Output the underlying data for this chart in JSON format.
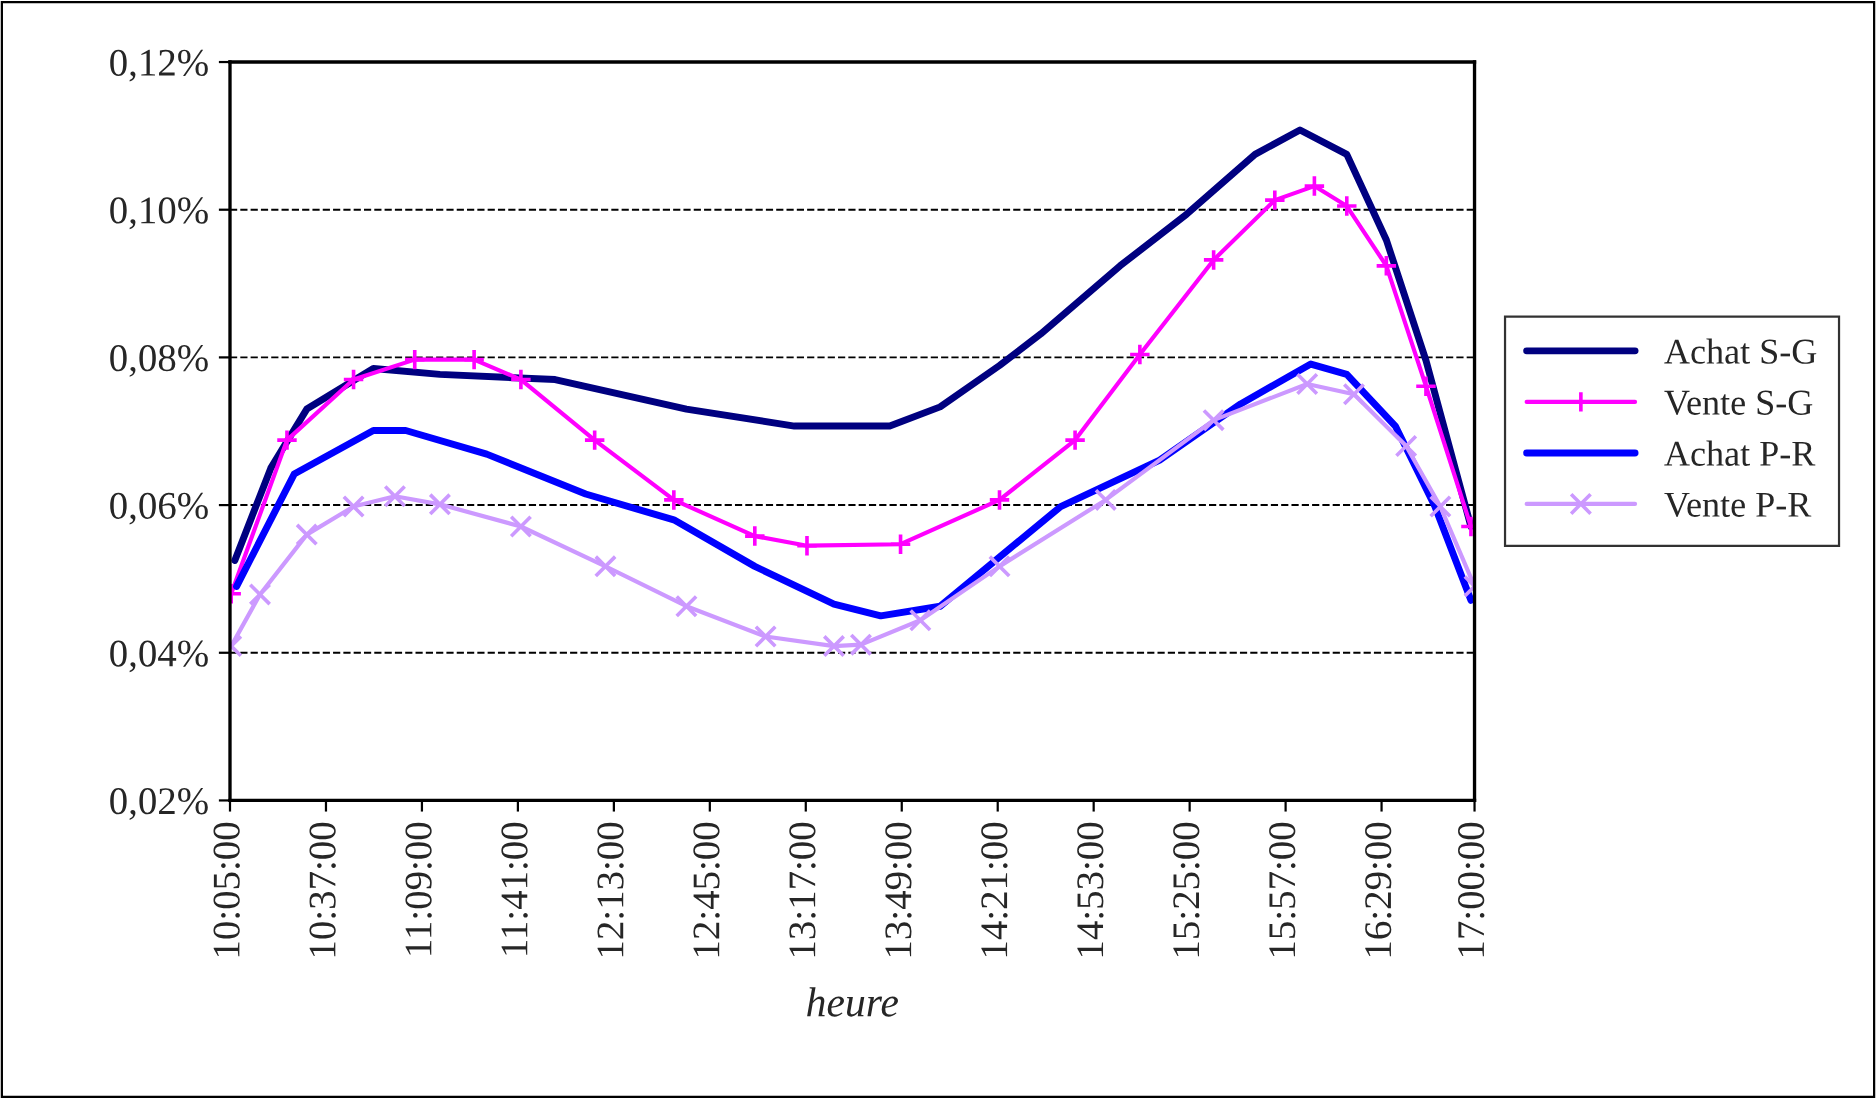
{
  "chart_data": {
    "type": "line",
    "xlabel": "heure",
    "xlim": [
      10.0833,
      17.0
    ],
    "xticks": [
      {
        "value": 10.0833,
        "label": "10:05:00"
      },
      {
        "value": 10.6167,
        "label": "10:37:00"
      },
      {
        "value": 11.15,
        "label": "11:09:00"
      },
      {
        "value": 11.6833,
        "label": "11:41:00"
      },
      {
        "value": 12.2167,
        "label": "12:13:00"
      },
      {
        "value": 12.75,
        "label": "12:45:00"
      },
      {
        "value": 13.2833,
        "label": "13:17:00"
      },
      {
        "value": 13.8167,
        "label": "13:49:00"
      },
      {
        "value": 14.35,
        "label": "14:21:00"
      },
      {
        "value": 14.8833,
        "label": "14:53:00"
      },
      {
        "value": 15.4167,
        "label": "15:25:00"
      },
      {
        "value": 15.95,
        "label": "15:57:00"
      },
      {
        "value": 16.4833,
        "label": "16:29:00"
      },
      {
        "value": 17.0,
        "label": "17:00:00"
      }
    ],
    "ylim": [
      0.02,
      0.12
    ],
    "yticks": [
      {
        "value": 0.02,
        "label": "0,02%"
      },
      {
        "value": 0.04,
        "label": "0,04%"
      },
      {
        "value": 0.06,
        "label": "0,06%"
      },
      {
        "value": 0.08,
        "label": "0,08%"
      },
      {
        "value": 0.1,
        "label": "0,10%"
      },
      {
        "value": 0.12,
        "label": "0,12%"
      }
    ],
    "grid": "y",
    "legend": "right",
    "series": [
      {
        "name": "Achat S-G",
        "color": "#000080",
        "marker": "none",
        "x": [
          10.11,
          10.31,
          10.51,
          10.88,
          11.25,
          11.89,
          12.62,
          13.22,
          13.75,
          14.03,
          14.36,
          14.59,
          15.03,
          15.4,
          15.78,
          16.03,
          16.29,
          16.51,
          16.73,
          16.98
        ],
        "values": [
          0.0525,
          0.065,
          0.073,
          0.0785,
          0.0777,
          0.077,
          0.073,
          0.0707,
          0.0707,
          0.0733,
          0.0789,
          0.0832,
          0.0924,
          0.0994,
          0.1075,
          0.1108,
          0.1075,
          0.0959,
          0.0796,
          0.0571
        ]
      },
      {
        "name": "Vente S-G",
        "color": "#ff00ff",
        "marker": "plus",
        "x": [
          10.09,
          10.4,
          10.77,
          11.11,
          11.44,
          11.7,
          12.11,
          12.55,
          13.0,
          13.29,
          13.81,
          14.36,
          14.78,
          15.14,
          15.55,
          15.89,
          16.11,
          16.29,
          16.51,
          16.73,
          16.98
        ],
        "values": [
          0.048,
          0.0688,
          0.077,
          0.0797,
          0.0797,
          0.077,
          0.0688,
          0.0607,
          0.0558,
          0.0545,
          0.0547,
          0.0607,
          0.0688,
          0.0804,
          0.0932,
          0.1013,
          0.1032,
          0.1005,
          0.0924,
          0.0761,
          0.0571
        ]
      },
      {
        "name": "Achat P-R",
        "color": "#0000ff",
        "marker": "none",
        "x": [
          10.12,
          10.44,
          10.88,
          11.06,
          11.51,
          12.06,
          12.55,
          13.0,
          13.44,
          13.7,
          14.03,
          14.7,
          15.25,
          15.7,
          16.09,
          16.29,
          16.56,
          16.78,
          16.98
        ],
        "values": [
          0.049,
          0.0642,
          0.0701,
          0.0701,
          0.0669,
          0.0615,
          0.058,
          0.0517,
          0.0466,
          0.045,
          0.0463,
          0.0598,
          0.0661,
          0.0737,
          0.0791,
          0.0777,
          0.0707,
          0.0598,
          0.0471
        ]
      },
      {
        "name": "Vente P-R",
        "color": "#cc99ff",
        "marker": "cross",
        "x": [
          10.09,
          10.25,
          10.51,
          10.77,
          11.0,
          11.25,
          11.7,
          12.17,
          12.62,
          13.06,
          13.44,
          13.59,
          13.92,
          14.36,
          14.95,
          15.55,
          16.07,
          16.33,
          16.62,
          16.81,
          17.0
        ],
        "values": [
          0.0409,
          0.0479,
          0.056,
          0.0598,
          0.0612,
          0.0601,
          0.0571,
          0.0517,
          0.0463,
          0.0422,
          0.0409,
          0.0411,
          0.0444,
          0.0517,
          0.0607,
          0.0715,
          0.0764,
          0.075,
          0.068,
          0.0598,
          0.049
        ]
      }
    ]
  }
}
